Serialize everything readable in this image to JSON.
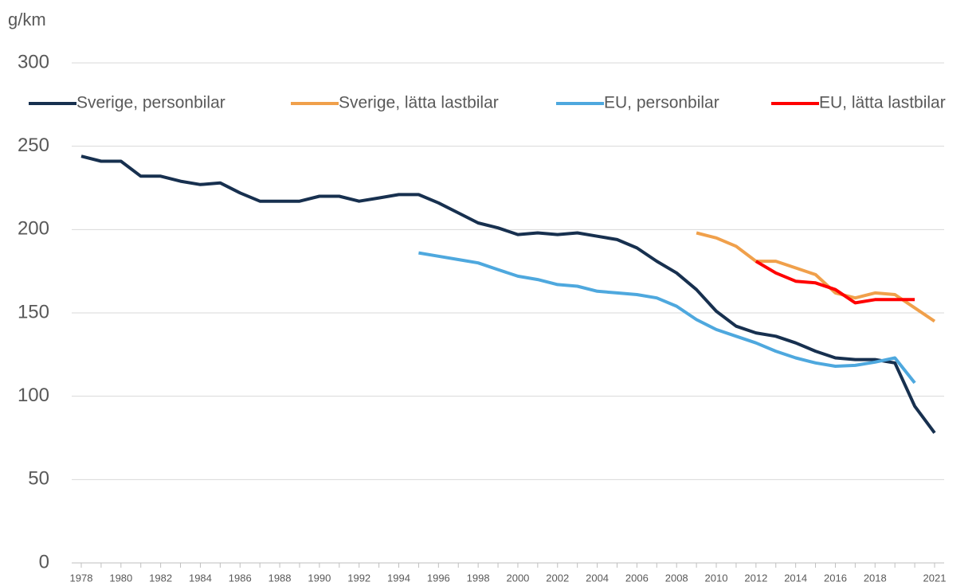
{
  "chart_data": {
    "type": "line",
    "y_label": "g/km",
    "categories": [
      "1978",
      null,
      "1980",
      null,
      "1982",
      null,
      "1984",
      null,
      "1986",
      null,
      "1988",
      null,
      "1990",
      null,
      "1992",
      null,
      "1994",
      null,
      "1996",
      null,
      "1998",
      null,
      "2000",
      null,
      "2002",
      null,
      "2004",
      null,
      "2006",
      null,
      "2008",
      null,
      "2010",
      null,
      "2012",
      null,
      "2014",
      null,
      "2016",
      null,
      "2018",
      null,
      null,
      "2021"
    ],
    "series": [
      {
        "name": "Sverige, personbilar",
        "color": "#17304f",
        "values": [
          244,
          241,
          241,
          232,
          232,
          229,
          227,
          228,
          222,
          217,
          217,
          217,
          220,
          220,
          217,
          219,
          221,
          221,
          216,
          210,
          204,
          201,
          197,
          198,
          197,
          198,
          196,
          194,
          189,
          181,
          174,
          164,
          151,
          142,
          138,
          136,
          132,
          127,
          123,
          122,
          122,
          120,
          94,
          78
        ]
      },
      {
        "name": "Sverige, lätta lastbilar",
        "color": "#f0a04b",
        "values": [
          null,
          null,
          null,
          null,
          null,
          null,
          null,
          null,
          null,
          null,
          null,
          null,
          null,
          null,
          null,
          null,
          null,
          null,
          null,
          null,
          null,
          null,
          null,
          null,
          null,
          null,
          null,
          null,
          null,
          null,
          null,
          198,
          195,
          190,
          181,
          181,
          177,
          173,
          162,
          159,
          162,
          161,
          153,
          145
        ]
      },
      {
        "name": "EU, personbilar",
        "color": "#4ea8de",
        "values": [
          null,
          null,
          null,
          null,
          null,
          null,
          null,
          null,
          null,
          null,
          null,
          null,
          null,
          null,
          null,
          null,
          null,
          186,
          184,
          182,
          180,
          176,
          172,
          170,
          167,
          166,
          163,
          162,
          161,
          159,
          154,
          146,
          140,
          136,
          132,
          127,
          123,
          120,
          118,
          118.5,
          120.5,
          123,
          108,
          null
        ]
      },
      {
        "name": "EU, lätta lastbilar",
        "color": "#ff0000",
        "values": [
          null,
          null,
          null,
          null,
          null,
          null,
          null,
          null,
          null,
          null,
          null,
          null,
          null,
          null,
          null,
          null,
          null,
          null,
          null,
          null,
          null,
          null,
          null,
          null,
          null,
          null,
          null,
          null,
          null,
          null,
          null,
          null,
          null,
          null,
          181,
          174,
          169,
          168,
          164,
          156,
          158,
          158,
          158,
          null
        ]
      }
    ],
    "ylim": [
      0,
      300
    ],
    "yticks": [
      0,
      50,
      100,
      150,
      200,
      250,
      300
    ],
    "grid": true
  }
}
